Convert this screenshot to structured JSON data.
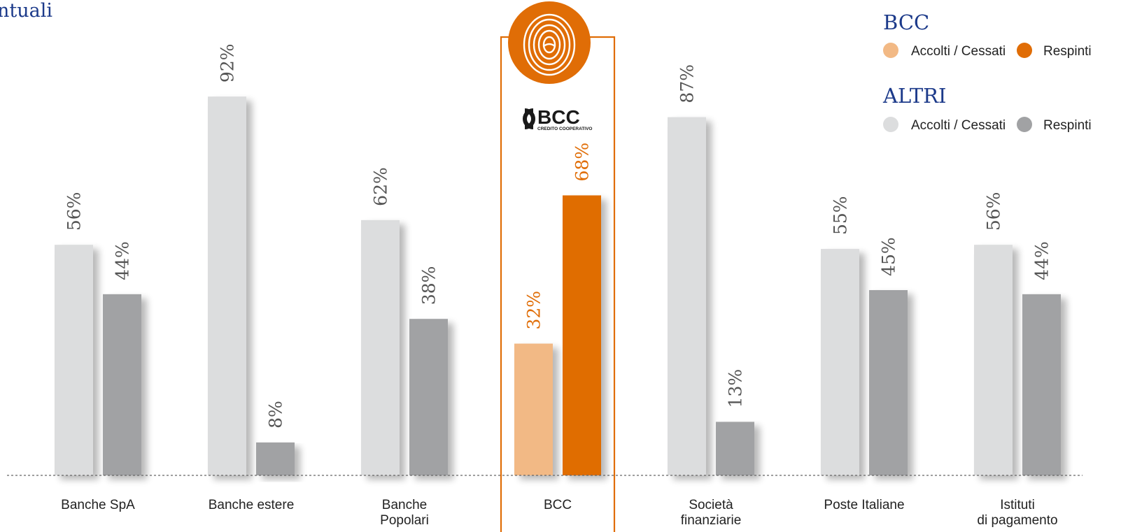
{
  "chart_data": {
    "type": "bar",
    "title": "ntuali",
    "categories": [
      [
        "Banche SpA"
      ],
      [
        "Banche estere"
      ],
      [
        "Banche",
        "Popolari"
      ],
      [
        "BCC"
      ],
      [
        "Società",
        "finanziarie"
      ],
      [
        "Poste Italiane"
      ],
      [
        "Istituti",
        "di pagamento"
      ]
    ],
    "series": [
      {
        "name": "Accolti / Cessati",
        "values": [
          56,
          92,
          62,
          32,
          87,
          55,
          56
        ]
      },
      {
        "name": "Respinti",
        "values": [
          44,
          8,
          38,
          68,
          13,
          45,
          44
        ]
      }
    ],
    "value_suffix": "%",
    "ylim": [
      0,
      100
    ],
    "highlight_category": 3,
    "logo_text": {
      "brand": "BCC",
      "sub": "CREDITO COOPERATIVO"
    },
    "legend": {
      "placement": "top-right",
      "groups": [
        {
          "heading": "BCC",
          "items": [
            {
              "label": "Accolti / Cessati",
              "color": "#f2b985"
            },
            {
              "label": "Respinti",
              "color": "#e06d06"
            }
          ]
        },
        {
          "heading": "ALTRI",
          "items": [
            {
              "label": "Accolti / Cessati",
              "color": "#dcddde"
            },
            {
              "label": "Respinti",
              "color": "#a1a2a4"
            }
          ]
        }
      ]
    },
    "colors": {
      "altri_accolti": "#dcddde",
      "altri_respinti": "#a1a2a4",
      "bcc_accolti": "#f2b985",
      "bcc_respinti": "#e06d06",
      "altri_label": "#555555",
      "bcc_label": "#e06d06",
      "highlight_frame": "#e06d06"
    }
  }
}
